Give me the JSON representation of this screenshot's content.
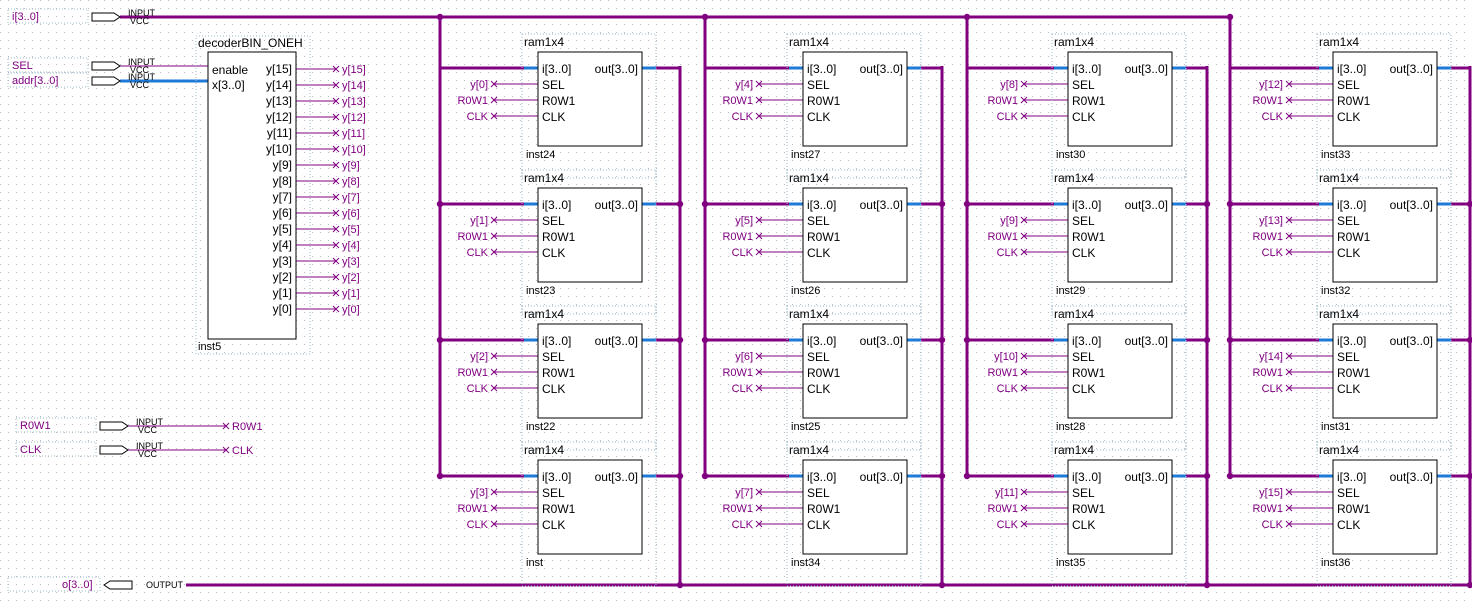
{
  "colors": {
    "bus": "#800080",
    "wire": "#800080",
    "label": "#800080",
    "block": "#000000",
    "pin_bus": "#1e7ad6",
    "grid": "#b8b8c4"
  },
  "pins": {
    "input_tag": "INPUT",
    "vcc_tag": "VCC",
    "output_tag": "OUTPUT",
    "i_bus": "i[3..0]",
    "sel": "SEL",
    "addr": "addr[3..0]",
    "r0w1": "R0W1",
    "clk": "CLK",
    "o_bus": "o[3..0]"
  },
  "decoder": {
    "title": "decoderBIN_ONEH",
    "enable": "enable",
    "x": "x[3..0]",
    "instance": "inst5",
    "ports": [
      "y[15]",
      "y[14]",
      "y[13]",
      "y[12]",
      "y[11]",
      "y[10]",
      "y[9]",
      "y[8]",
      "y[7]",
      "y[6]",
      "y[5]",
      "y[4]",
      "y[3]",
      "y[2]",
      "y[1]",
      "y[0]"
    ],
    "net_labels": [
      "y[15]",
      "y[14]",
      "y[13]",
      "y[12]",
      "y[11]",
      "y[10]",
      "y[9]",
      "y[8]",
      "y[7]",
      "y[6]",
      "y[5]",
      "y[4]",
      "y[3]",
      "y[2]",
      "y[1]",
      "y[0]"
    ]
  },
  "ram_ports": {
    "title": "ram1x4",
    "data_in": "i[3..0]",
    "sel": "SEL",
    "r0w1": "R0W1",
    "clk": "CLK",
    "data_out": "out[3..0]"
  },
  "rams": [
    {
      "instance": "inst24",
      "sel_net": "y[0]",
      "r0w1_net": "R0W1",
      "clk_net": "CLK"
    },
    {
      "instance": "inst23",
      "sel_net": "y[1]",
      "r0w1_net": "R0W1",
      "clk_net": "CLK"
    },
    {
      "instance": "inst22",
      "sel_net": "y[2]",
      "r0w1_net": "R0W1",
      "clk_net": "CLK"
    },
    {
      "instance": "inst",
      "sel_net": "y[3]",
      "r0w1_net": "R0W1",
      "clk_net": "CLK"
    },
    {
      "instance": "inst27",
      "sel_net": "y[4]",
      "r0w1_net": "R0W1",
      "clk_net": "CLK"
    },
    {
      "instance": "inst26",
      "sel_net": "y[5]",
      "r0w1_net": "R0W1",
      "clk_net": "CLK"
    },
    {
      "instance": "inst25",
      "sel_net": "y[6]",
      "r0w1_net": "R0W1",
      "clk_net": "CLK"
    },
    {
      "instance": "inst34",
      "sel_net": "y[7]",
      "r0w1_net": "R0W1",
      "clk_net": "CLK"
    },
    {
      "instance": "inst30",
      "sel_net": "y[8]",
      "r0w1_net": "R0W1",
      "clk_net": "CLK"
    },
    {
      "instance": "inst29",
      "sel_net": "y[9]",
      "r0w1_net": "R0W1",
      "clk_net": "CLK"
    },
    {
      "instance": "inst28",
      "sel_net": "y[10]",
      "r0w1_net": "R0W1",
      "clk_net": "CLK"
    },
    {
      "instance": "inst35",
      "sel_net": "y[11]",
      "r0w1_net": "R0W1",
      "clk_net": "CLK"
    },
    {
      "instance": "inst33",
      "sel_net": "y[12]",
      "r0w1_net": "R0W1",
      "clk_net": "CLK"
    },
    {
      "instance": "inst32",
      "sel_net": "y[13]",
      "r0w1_net": "R0W1",
      "clk_net": "CLK"
    },
    {
      "instance": "inst31",
      "sel_net": "y[14]",
      "r0w1_net": "R0W1",
      "clk_net": "CLK"
    },
    {
      "instance": "inst36",
      "sel_net": "y[15]",
      "r0w1_net": "R0W1",
      "clk_net": "CLK"
    }
  ]
}
